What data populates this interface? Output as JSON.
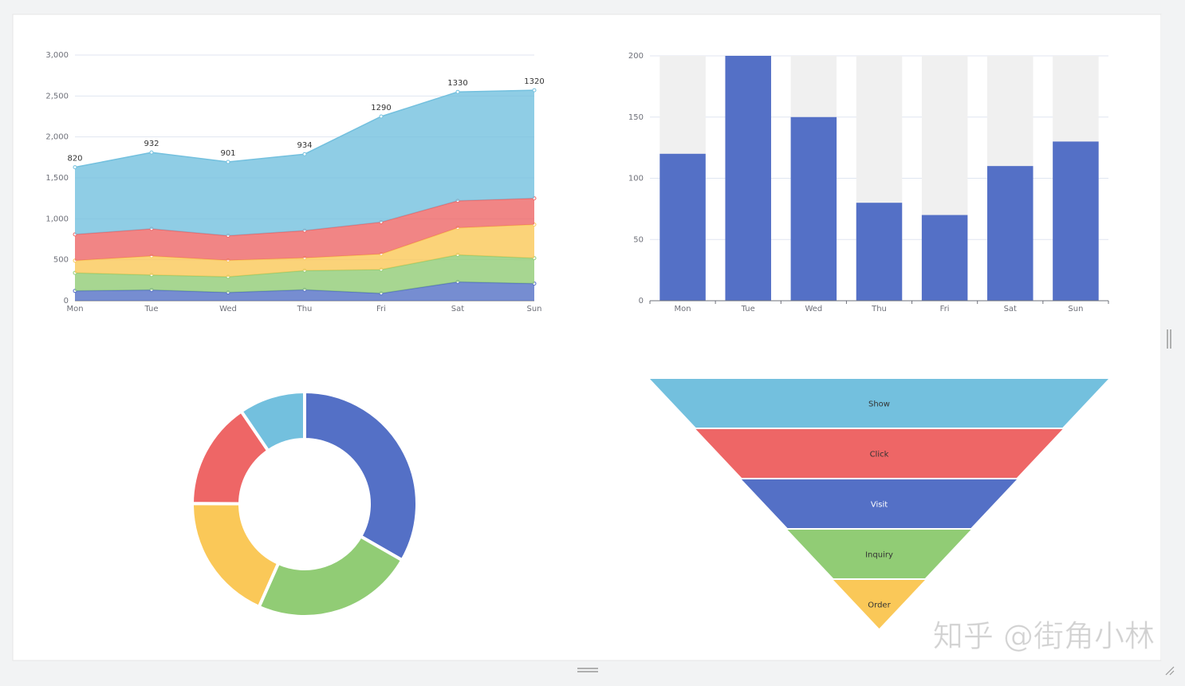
{
  "chart_data": [
    {
      "type": "stacked-area",
      "categories": [
        "Mon",
        "Tue",
        "Wed",
        "Thu",
        "Fri",
        "Sat",
        "Sun"
      ],
      "series": [
        {
          "color": "#5470c6",
          "values": [
            120,
            132,
            101,
            134,
            90,
            230,
            210
          ]
        },
        {
          "color": "#91cc75",
          "values": [
            220,
            182,
            191,
            234,
            290,
            330,
            310
          ]
        },
        {
          "color": "#fac858",
          "values": [
            150,
            232,
            201,
            154,
            190,
            330,
            410
          ]
        },
        {
          "color": "#ee6666",
          "values": [
            320,
            332,
            301,
            334,
            390,
            330,
            320
          ]
        },
        {
          "color": "#73c0de",
          "values": [
            820,
            932,
            901,
            934,
            1290,
            1330,
            1320
          ],
          "show_labels": true
        }
      ],
      "ylim": [
        0,
        3000
      ],
      "yticks": [
        0,
        500,
        {
          "value": 1000,
          "label": "1,000"
        },
        {
          "value": 1500,
          "label": "1,500"
        },
        {
          "value": 2000,
          "label": "2,000"
        },
        {
          "value": 2500,
          "label": "2,500"
        },
        {
          "value": 3000,
          "label": "3,000"
        }
      ],
      "grid": true
    },
    {
      "type": "bar",
      "categories": [
        "Mon",
        "Tue",
        "Wed",
        "Thu",
        "Fri",
        "Sat",
        "Sun"
      ],
      "values": [
        120,
        200,
        150,
        80,
        70,
        110,
        130
      ],
      "color": "#5470c6",
      "background_color": "#f0f0f0",
      "ylim": [
        0,
        200
      ],
      "yticks": [
        0,
        50,
        100,
        150,
        200
      ],
      "grid": true
    },
    {
      "type": "doughnut",
      "values": [
        1048,
        735,
        580,
        484,
        300
      ],
      "colors": [
        "#5470c6",
        "#91cc75",
        "#fac858",
        "#ee6666",
        "#73c0de"
      ]
    },
    {
      "type": "funnel",
      "categories": [
        "Show",
        "Click",
        "Visit",
        "Inquiry",
        "Order"
      ],
      "values": [
        100,
        80,
        60,
        40,
        20
      ],
      "colors": [
        "#73c0de",
        "#ee6666",
        "#5470c6",
        "#91cc75",
        "#fac858"
      ]
    }
  ],
  "watermark": "知乎 @街角小林"
}
